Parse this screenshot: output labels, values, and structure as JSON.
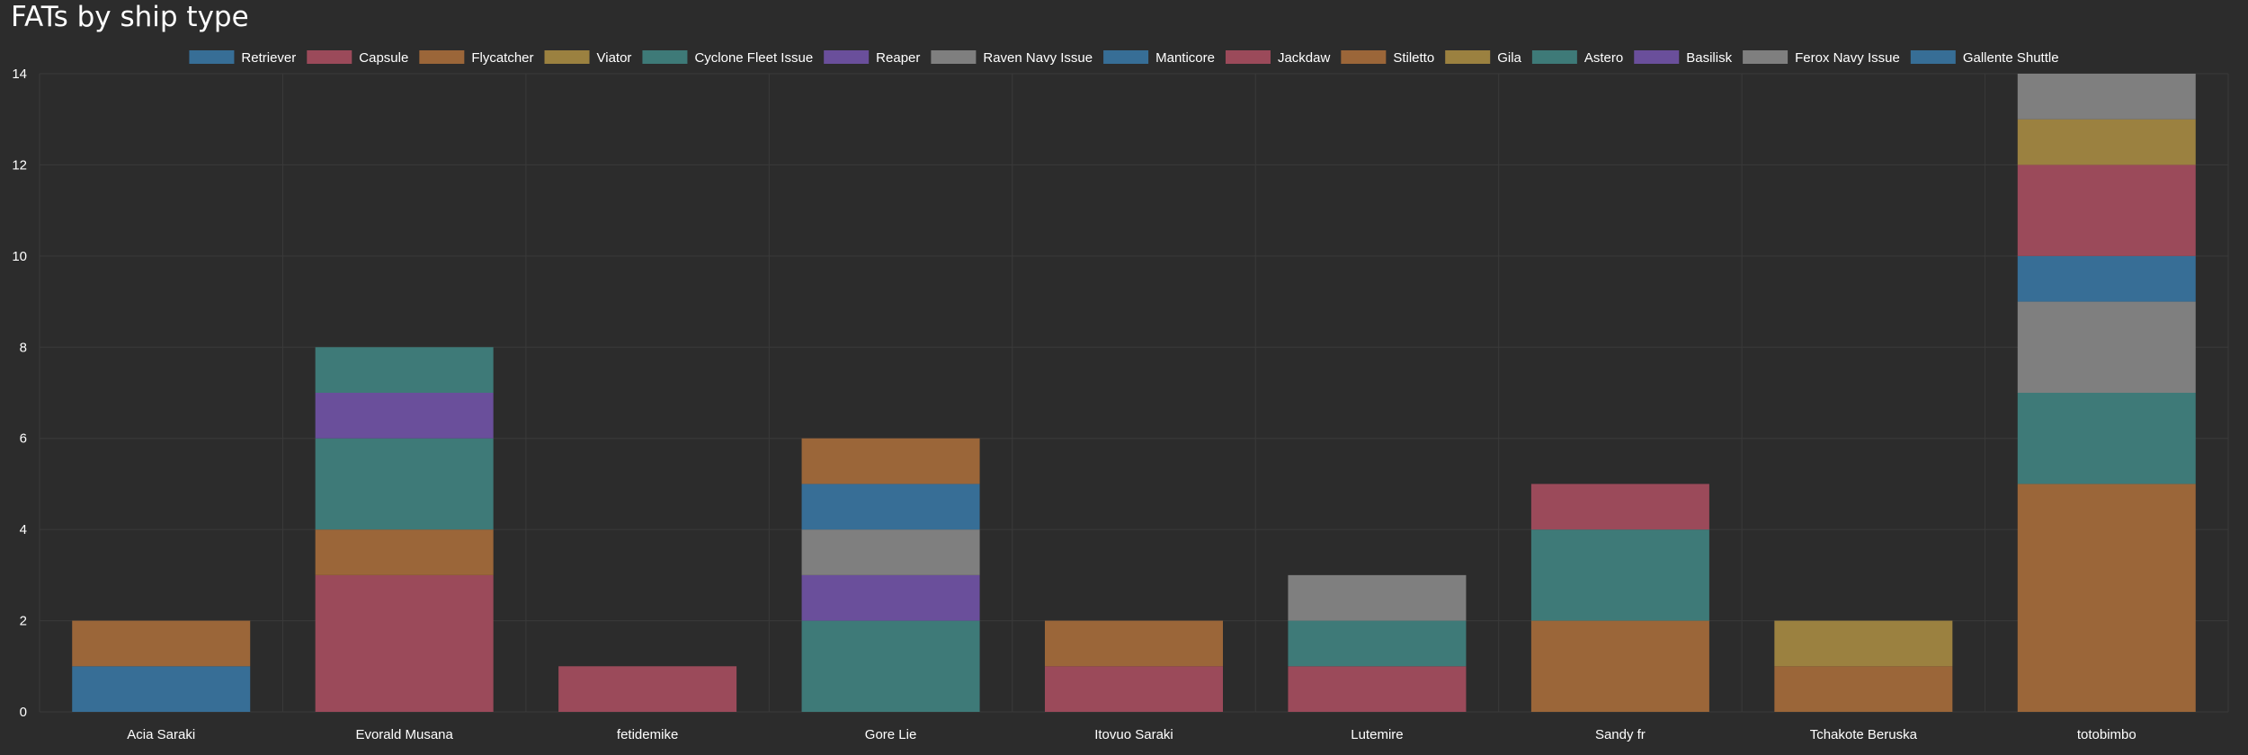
{
  "page": {
    "title": "FATs by ship type"
  },
  "chart_data": {
    "type": "bar",
    "stacked": true,
    "title": "FATs by ship type",
    "xlabel": "",
    "ylabel": "",
    "ylim": [
      0,
      14
    ],
    "yticks": [
      0,
      2,
      4,
      6,
      8,
      10,
      12,
      14
    ],
    "grid": true,
    "legend_position": "top",
    "categories": [
      "Acia Saraki",
      "Evorald Musana",
      "fetidemike",
      "Gore Lie",
      "Itovuo Saraki",
      "Lutemire",
      "Sandy fr",
      "Tchakote Beruska",
      "totobimbo"
    ],
    "series": [
      {
        "name": "Retriever",
        "color": "#376e96",
        "values": [
          1,
          0,
          0,
          0,
          0,
          0,
          0,
          0,
          0
        ]
      },
      {
        "name": "Capsule",
        "color": "#9b4a5a",
        "values": [
          0,
          3,
          1,
          0,
          1,
          1,
          0,
          0,
          0
        ]
      },
      {
        "name": "Flycatcher",
        "color": "#9b6639",
        "values": [
          1,
          1,
          0,
          0,
          1,
          0,
          2,
          1,
          5
        ]
      },
      {
        "name": "Viator",
        "color": "#9b8140",
        "values": [
          0,
          0,
          0,
          0,
          0,
          0,
          0,
          1,
          0
        ]
      },
      {
        "name": "Cyclone Fleet Issue",
        "color": "#3e7a78",
        "values": [
          0,
          2,
          0,
          2,
          0,
          1,
          2,
          0,
          2
        ]
      },
      {
        "name": "Reaper",
        "color": "#6a4f9b",
        "values": [
          0,
          1,
          0,
          1,
          0,
          0,
          0,
          0,
          0
        ]
      },
      {
        "name": "Raven Navy Issue",
        "color": "#7f7f7f",
        "values": [
          0,
          0,
          0,
          1,
          0,
          1,
          0,
          0,
          2
        ]
      },
      {
        "name": "Manticore",
        "color": "#376e96",
        "values": [
          0,
          0,
          0,
          1,
          0,
          0,
          0,
          0,
          1
        ]
      },
      {
        "name": "Jackdaw",
        "color": "#9b4a5a",
        "values": [
          0,
          0,
          0,
          0,
          0,
          0,
          1,
          0,
          2
        ]
      },
      {
        "name": "Stiletto",
        "color": "#9b6639",
        "values": [
          0,
          0,
          0,
          1,
          0,
          0,
          0,
          0,
          0
        ]
      },
      {
        "name": "Gila",
        "color": "#9b8140",
        "values": [
          0,
          0,
          0,
          0,
          0,
          0,
          0,
          0,
          1
        ]
      },
      {
        "name": "Astero",
        "color": "#3e7a78",
        "values": [
          0,
          1,
          0,
          0,
          0,
          0,
          0,
          0,
          0
        ]
      },
      {
        "name": "Basilisk",
        "color": "#6a4f9b",
        "values": [
          0,
          0,
          0,
          0,
          0,
          0,
          0,
          0,
          0
        ]
      },
      {
        "name": "Ferox Navy Issue",
        "color": "#7f7f7f",
        "values": [
          0,
          0,
          0,
          0,
          0,
          0,
          0,
          0,
          1
        ]
      },
      {
        "name": "Gallente Shuttle",
        "color": "#376e96",
        "values": [
          0,
          0,
          0,
          0,
          0,
          0,
          0,
          0,
          0
        ]
      }
    ]
  },
  "colors": {
    "background": "#2c2c2c",
    "grid": "#3a3a3a",
    "text": "#ffffff"
  }
}
